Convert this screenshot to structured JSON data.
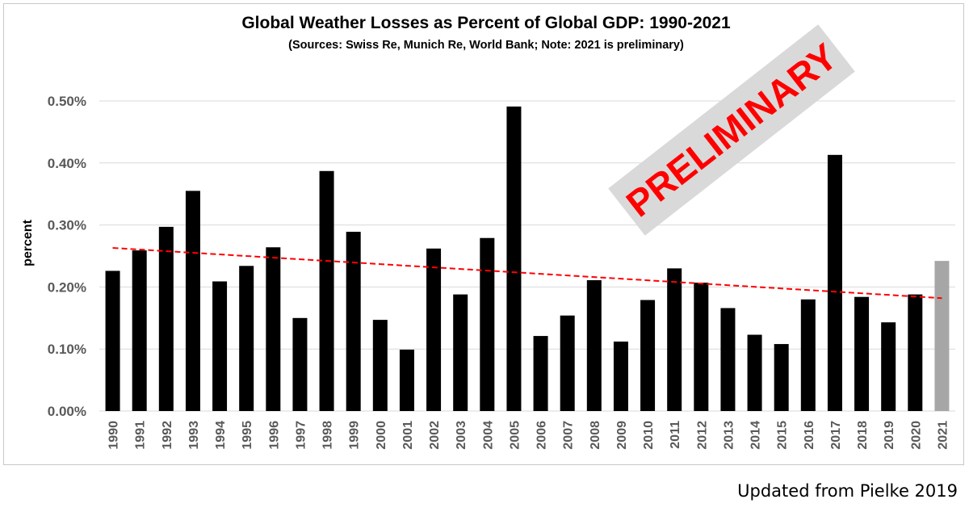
{
  "chart_data": {
    "type": "bar",
    "title": "Global Weather Losses as Percent of Global GDP: 1990-2021",
    "subtitle": "(Sources: Swiss Re, Munich Re, World Bank; Note: 2021 is preliminary)",
    "ylabel": "percent",
    "xlabel": "",
    "ylim": [
      0,
      0.5
    ],
    "yticks": [
      0.0,
      0.1,
      0.2,
      0.3,
      0.4,
      0.5
    ],
    "ytick_labels": [
      "0.00%",
      "0.10%",
      "0.20%",
      "0.30%",
      "0.40%",
      "0.50%"
    ],
    "categories": [
      "1990",
      "1991",
      "1992",
      "1993",
      "1994",
      "1995",
      "1996",
      "1997",
      "1998",
      "1999",
      "2000",
      "2001",
      "2002",
      "2003",
      "2004",
      "2005",
      "2006",
      "2007",
      "2008",
      "2009",
      "2010",
      "2011",
      "2012",
      "2013",
      "2014",
      "2015",
      "2016",
      "2017",
      "2018",
      "2019",
      "2020",
      "2021"
    ],
    "values": [
      0.226,
      0.259,
      0.297,
      0.355,
      0.209,
      0.234,
      0.264,
      0.15,
      0.387,
      0.289,
      0.147,
      0.099,
      0.262,
      0.188,
      0.279,
      0.491,
      0.121,
      0.154,
      0.211,
      0.112,
      0.179,
      0.23,
      0.207,
      0.166,
      0.123,
      0.108,
      0.18,
      0.413,
      0.184,
      0.143,
      0.188,
      0.242
    ],
    "preliminary_category": "2021",
    "grid": true,
    "trendline": {
      "start": 0.263,
      "end": 0.182,
      "style": "dashed"
    },
    "annotation": "PRELIMINARY",
    "colors": {
      "bar": "#000000",
      "preliminary_bar": "#a6a6a6",
      "trend": "#ff0000",
      "grid": "#d9d9d9",
      "tick_text": "#595959",
      "stamp_bg": "#d9d9d9",
      "stamp_text": "#ff0000"
    }
  },
  "credit": "Updated from Pielke 2019"
}
